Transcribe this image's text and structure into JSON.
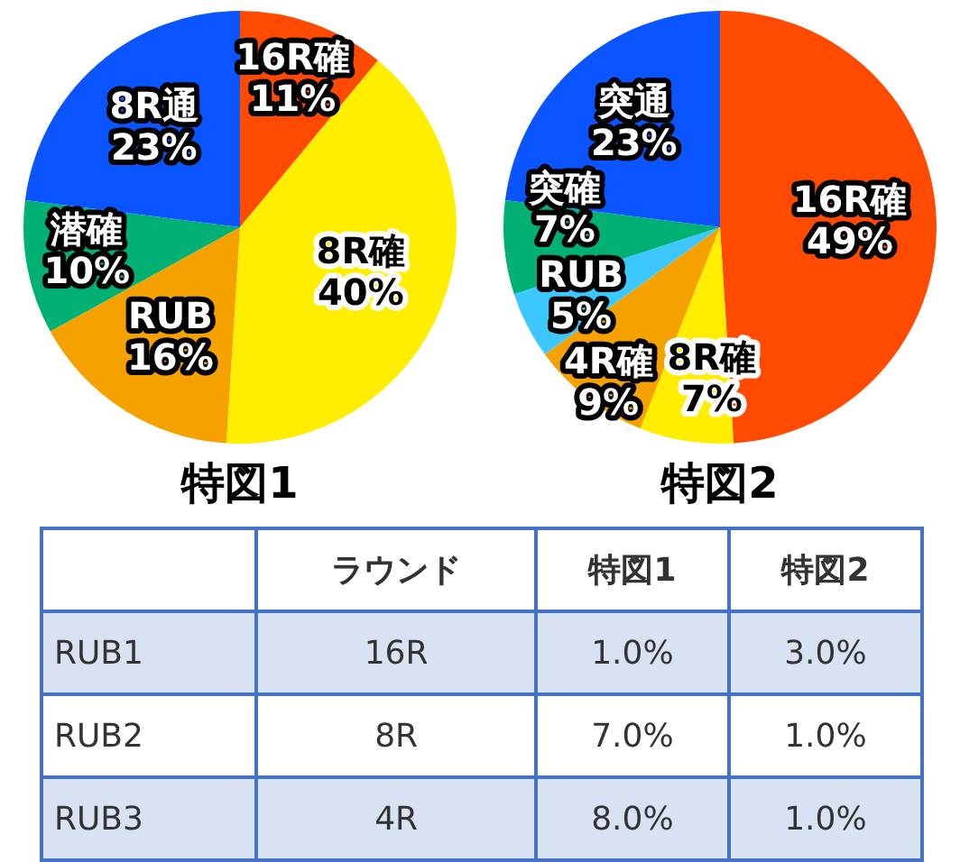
{
  "chart_data": [
    {
      "type": "pie",
      "title": "特図1",
      "categories": [
        "16R確",
        "8R確",
        "RUB",
        "潜確",
        "8R通"
      ],
      "values": [
        11,
        40,
        16,
        10,
        23
      ],
      "value_labels": [
        "11%",
        "40%",
        "16%",
        "10%",
        "23%"
      ],
      "colors": [
        "#ff4a00",
        "#ffee00",
        "#f5a200",
        "#00b173",
        "#0a55ff"
      ]
    },
    {
      "type": "pie",
      "title": "特図2",
      "categories": [
        "16R確",
        "8R確",
        "4R確",
        "RUB",
        "突確",
        "突通"
      ],
      "values": [
        49,
        7,
        9,
        5,
        7,
        23
      ],
      "value_labels": [
        "49%",
        "7%",
        "9%",
        "5%",
        "7%",
        "23%"
      ],
      "colors": [
        "#ff4a00",
        "#ffee00",
        "#f5a200",
        "#3cc8ff",
        "#00b173",
        "#0a55ff"
      ]
    },
    {
      "type": "other",
      "categories": [
        null,
        "ラウンド",
        "特図1",
        "特図2"
      ],
      "y_categories": [
        "RUB1",
        "RUB2",
        "RUB3"
      ],
      "cell_labels": [
        [
          "16R",
          "1.0%",
          "3.0%"
        ],
        [
          "8R",
          "7.0%",
          "1.0%"
        ],
        [
          "4R",
          "8.0%",
          "1.0%"
        ]
      ]
    }
  ]
}
